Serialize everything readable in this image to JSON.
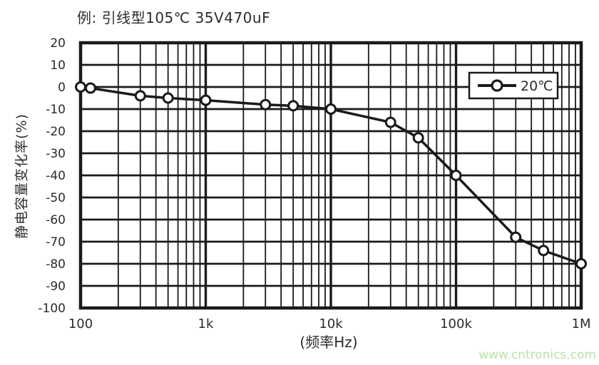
{
  "page": {
    "watermark": "www.cntronics.com"
  },
  "chart_data": {
    "type": "line",
    "title": "例: 引线型105℃ 35V470uF",
    "xlabel": "(频率Hz)",
    "ylabel": "静电容量变化率(%)",
    "x_scale": "log",
    "xlim": [
      100,
      1000000
    ],
    "ylim": [
      -100,
      20
    ],
    "grid": "on",
    "legend_position": "top-right",
    "x_ticks": [
      100,
      1000,
      10000,
      100000,
      1000000
    ],
    "x_tick_labels": [
      "100",
      "1k",
      "10k",
      "100k",
      "1M"
    ],
    "y_ticks": [
      20,
      10,
      0,
      -10,
      -20,
      -30,
      -40,
      -50,
      -60,
      -70,
      -80,
      -90,
      -100
    ],
    "x": [
      100,
      120,
      300,
      500,
      1000,
      3000,
      5000,
      10000,
      30000,
      50000,
      100000,
      300000,
      500000,
      1000000
    ],
    "series": [
      {
        "name": "20℃",
        "values": [
          0,
          -0.5,
          -4,
          -5,
          -6,
          -8,
          -8.5,
          -10,
          -16,
          -23,
          -40,
          -68,
          -74,
          -80
        ]
      }
    ],
    "line_color": "#1a1a1a",
    "grid_color": "#1a1a1a",
    "marker": "circle-open",
    "text_color": "#2b2b2b"
  }
}
